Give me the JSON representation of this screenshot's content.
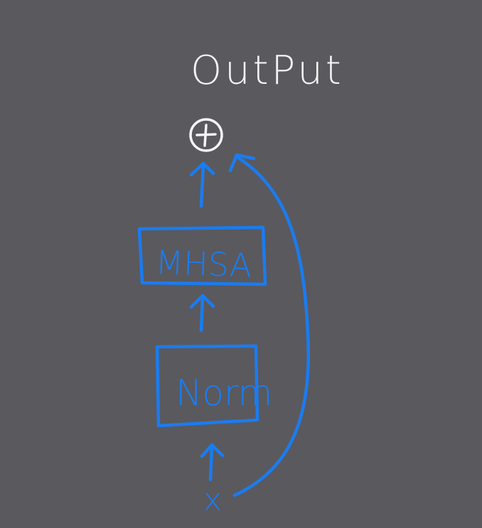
{
  "output_label": "OutPut",
  "blocks": {
    "mhsa": "MHSA",
    "norm": "Norm"
  },
  "input_label": "x",
  "add_symbol": "⊕",
  "colors": {
    "background": "#5a595e",
    "blue": "#1a7cf0",
    "white": "#f4f4f4"
  }
}
